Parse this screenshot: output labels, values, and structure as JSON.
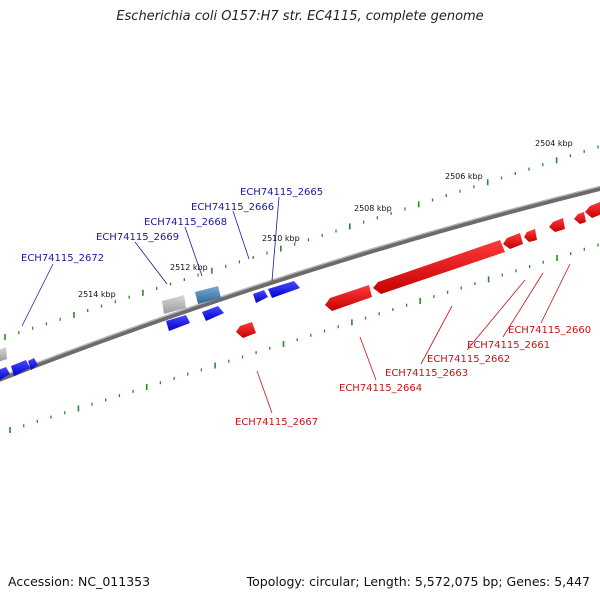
{
  "title": "Escherichia coli O157:H7 str. EC4115, complete genome",
  "footer": {
    "accession": "Accession: NC_011353",
    "summary": "Topology: circular; Length: 5,572,075 bp; Genes: 5,447"
  },
  "colors": {
    "forward": "#1a1af0",
    "reverse": "#ee1111",
    "forward_label": "#1a1a99",
    "reverse_label": "#cc1111",
    "grey_gene": "#b8b8b8",
    "steel_gene": "#4a86b8",
    "ticks": "#2a8a2a",
    "backbone": "#777777"
  },
  "scale_labels": [
    {
      "text": "2504 kbp",
      "kbp": 2504
    },
    {
      "text": "2506 kbp",
      "kbp": 2506
    },
    {
      "text": "2508 kbp",
      "kbp": 2508
    },
    {
      "text": "2510 kbp",
      "kbp": 2510
    },
    {
      "text": "2512 kbp",
      "kbp": 2512
    },
    {
      "text": "2514 kbp",
      "kbp": 2514
    }
  ],
  "forward_labels": [
    "ECH74115_2665",
    "ECH74115_2666",
    "ECH74115_2668",
    "ECH74115_2669",
    "ECH74115_2672"
  ],
  "reverse_labels": [
    "ECH74115_2660",
    "ECH74115_2661",
    "ECH74115_2662",
    "ECH74115_2663",
    "ECH74115_2664",
    "ECH74115_2667"
  ]
}
